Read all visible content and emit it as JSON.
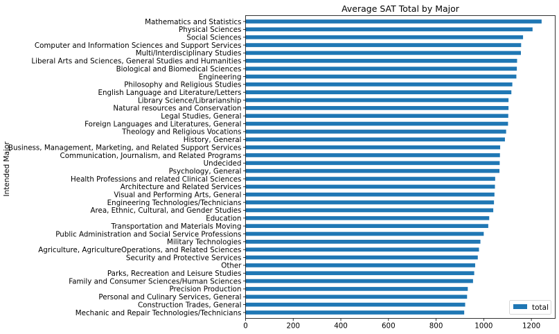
{
  "chart_data": {
    "type": "bar",
    "orientation": "horizontal",
    "title": "Average SAT Total by Major",
    "xlabel": "",
    "ylabel": "Intended Major",
    "xlim": [
      0,
      1300
    ],
    "xticks": [
      0,
      200,
      400,
      600,
      800,
      1000,
      1200
    ],
    "xtick_labels": [
      "0",
      "200",
      "400",
      "600",
      "800",
      "1000",
      "1200"
    ],
    "grid": false,
    "legend_position": "lower-right",
    "bar_color": "#1f77b4",
    "series": [
      {
        "name": "total",
        "color": "#1f77b4"
      }
    ],
    "categories": [
      "Mathematics and Statistics",
      "Physical Sciences",
      "Social Sciences",
      "Computer and Information Sciences and Support Services",
      "Multi/Interdisciplinary Studies",
      "Liberal Arts and Sciences, General Studies and Humanities",
      "Biological and Biomedical Sciences",
      "Engineering",
      "Philosophy and Religious Studies",
      "English Language and Literature/Letters",
      "Library Science/Librarianship",
      "Natural resources and Conservation",
      "Legal Studies, General",
      "Foreign Languages and Literatures, General",
      "Theology and Religious Vocations",
      "History, General",
      "Business, Management, Marketing, and Related Support Services",
      "Communication, Journalism, and Related Programs",
      "Undecided",
      "Psychology, General",
      "Health Professions and related Clinical Sciences",
      "Architecture and Related Services",
      "Visual and Performing Arts, General",
      "Engineering Technologies/Technicians",
      "Area, Ethnic, Cultural, and Gender Studies",
      "Education",
      "Transportation and Materials Moving",
      "Public Administration and Social Service Professions",
      "Military Technologies",
      "Agriculture, AgricultureOperations, and Related Sciences",
      "Security and Protective Services",
      "Other",
      "Parks, Recreation and Leisure Studies",
      "Family and Consumer Sciences/Human Sciences",
      "Precision Production",
      "Personal and Culinary Services, General",
      "Construction Trades, General",
      "Mechanic and Repair Technologies/Technicians"
    ],
    "values": [
      1243,
      1205,
      1165,
      1157,
      1156,
      1140,
      1139,
      1137,
      1120,
      1116,
      1104,
      1104,
      1103,
      1102,
      1094,
      1089,
      1069,
      1068,
      1067,
      1066,
      1048,
      1047,
      1045,
      1043,
      1040,
      1023,
      1019,
      1000,
      986,
      980,
      975,
      964,
      960,
      955,
      933,
      930,
      922,
      918
    ]
  }
}
